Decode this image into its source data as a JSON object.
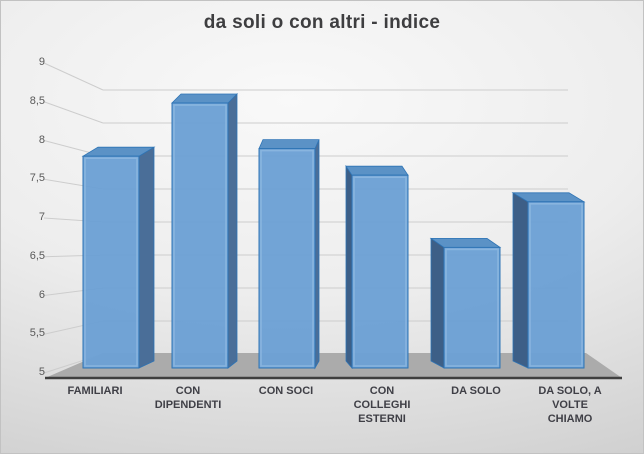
{
  "title": "da soli o con altri - indice",
  "chart_data": {
    "type": "bar",
    "style": "3d-column",
    "title": "da soli o con altri - indice",
    "categories": [
      "FAMILIARI",
      "CON DIPENDENTI",
      "CON SOCI",
      "CON COLLEGHI ESTERNI",
      "DA SOLO",
      "DA SOLO, A VOLTE CHIAMO"
    ],
    "values": [
      7.8,
      8.5,
      7.9,
      7.55,
      6.6,
      7.2
    ],
    "xlabel": "",
    "ylabel": "",
    "ylim": [
      5,
      9
    ],
    "ytick_step": 0.5,
    "grid": true,
    "legend": false,
    "decimal_separator": ","
  },
  "axes": {
    "y": {
      "ticks": [
        "9",
        "8,5",
        "8",
        "7,5",
        "7",
        "6,5",
        "6",
        "5,5",
        "5"
      ]
    },
    "x": {
      "labels": [
        "FAMILIARI",
        "CON\nDIPENDENTI",
        "CON SOCI",
        "CON\nCOLLEGHI\nESTERNI",
        "DA SOLO",
        "DA SOLO, A\nVOLTE\nCHIAMO"
      ]
    }
  },
  "colors": {
    "bar_front": "#6ca0d4",
    "bar_top": "#5b92c6",
    "bar_side_right": "#4a6e98",
    "bar_side_left": "#3d5f87",
    "bar_edge": "#2e74b5",
    "bar_bevel": "#9cc3e8",
    "gridline": "#cdcdcd",
    "floor": "#ababab",
    "floor_shade": "#9e9e9e",
    "axis_line": "#3f3f3f",
    "title_text": "#3e3e40",
    "tick_text": "#595959",
    "category_text": "#3f3f46"
  }
}
